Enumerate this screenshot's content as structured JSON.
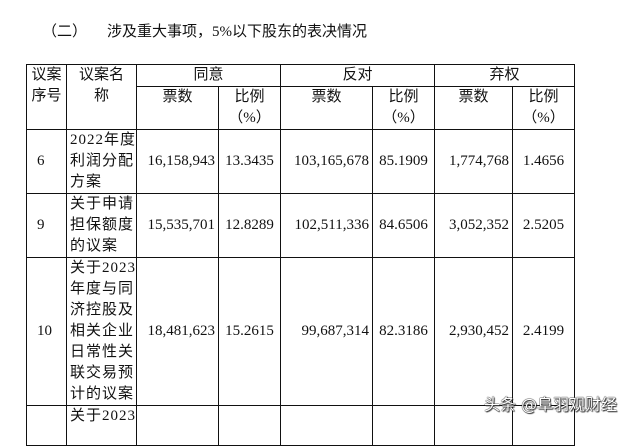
{
  "section": {
    "number": "（二）",
    "title": "涉及重大事项，5%以下股东的表决情况"
  },
  "header": {
    "seq": "议案序号",
    "name": "议案名称",
    "agree": "同意",
    "against": "反对",
    "abstain": "弃权",
    "votes": "票数",
    "ratio": "比例",
    "ratio_unit": "（%）"
  },
  "rows": [
    {
      "seq": "6",
      "name": "2022年度利润分配方案",
      "agree_votes": "16,158,943",
      "agree_ratio": "13.3435",
      "against_votes": "103,165,678",
      "against_ratio": "85.1909",
      "abstain_votes": "1,774,768",
      "abstain_ratio": "1.4656"
    },
    {
      "seq": "9",
      "name": "关于申请担保额度的议案",
      "agree_votes": "15,535,701",
      "agree_ratio": "12.8289",
      "against_votes": "102,511,336",
      "against_ratio": "84.6506",
      "abstain_votes": "3,052,352",
      "abstain_ratio": "2.5205"
    },
    {
      "seq": "10",
      "name": "关于2023年度与同济控股及相关企业日常性关联交易预计的议案",
      "agree_votes": "18,481,623",
      "agree_ratio": "15.2615",
      "against_votes": "99,687,314",
      "against_ratio": "82.3186",
      "abstain_votes": "2,930,452",
      "abstain_ratio": "2.4199"
    },
    {
      "seq": "",
      "name": "关于2023"
    }
  ],
  "watermark": "头条 @阜羽观财经"
}
